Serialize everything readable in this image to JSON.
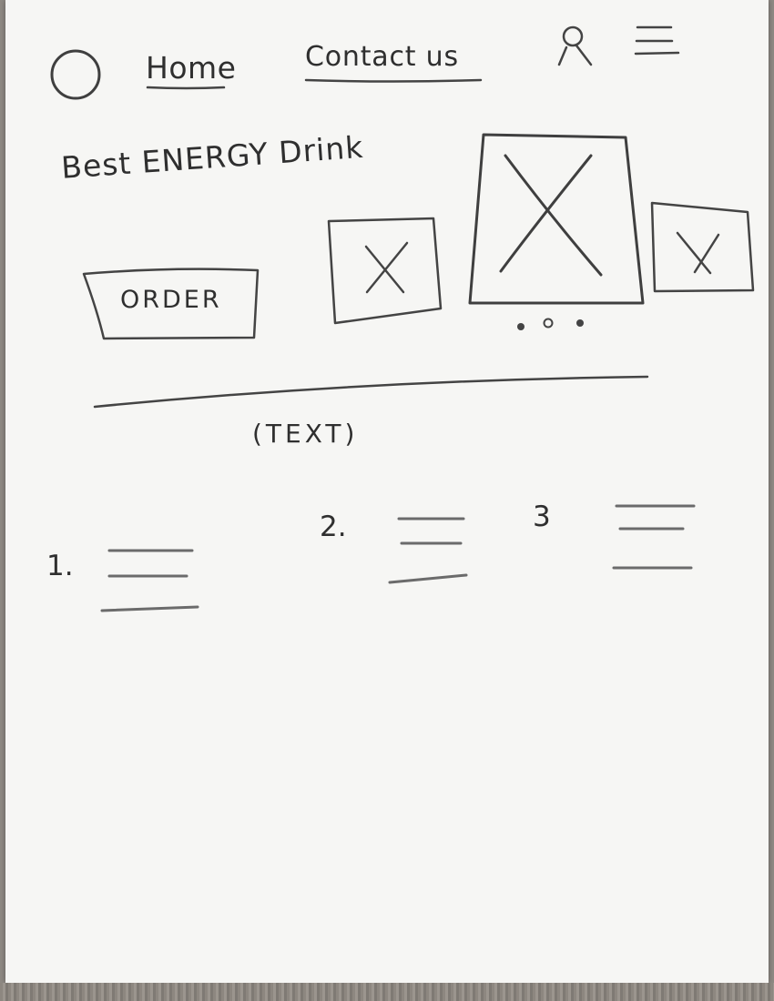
{
  "header": {
    "nav": [
      {
        "label": "Home"
      },
      {
        "label": "Contact us"
      }
    ],
    "icons": {
      "logo": "circle-logo-icon",
      "user": "user-icon",
      "menu": "hamburger-menu-icon"
    }
  },
  "hero": {
    "headline": "Best ENERGY Drink",
    "cta_label": "ORDER",
    "carousel": {
      "images": [
        "image-placeholder-small-left",
        "image-placeholder-large-center",
        "image-placeholder-small-right"
      ],
      "dots": 3
    }
  },
  "section": {
    "text_placeholder": "(TEXT)",
    "steps": [
      {
        "number": "1."
      },
      {
        "number": "2."
      },
      {
        "number": "3"
      }
    ]
  },
  "colors": {
    "paper": "#f6f6f4",
    "ink": "#3f3f3f",
    "background": "#8f8a84"
  }
}
